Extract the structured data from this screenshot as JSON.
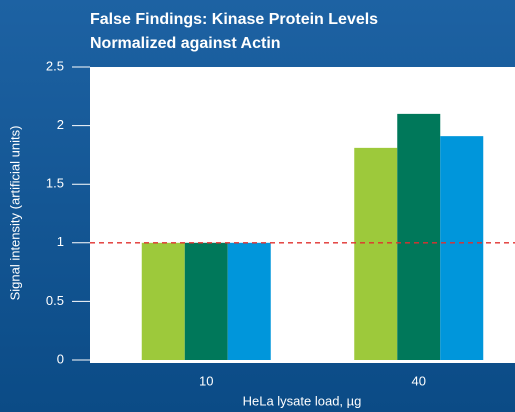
{
  "chart_data": {
    "type": "bar",
    "title": [
      "False Findings: Kinase Protein Levels",
      "Normalized against Actin"
    ],
    "xlabel": "HeLa lysate load, µg",
    "ylabel": "Signal intensity (artificial units)",
    "categories": [
      "10",
      "40"
    ],
    "series": [
      {
        "color": "#9dc93b",
        "values": [
          1,
          1.81
        ]
      },
      {
        "color": "#00785a",
        "values": [
          1,
          2.1
        ]
      },
      {
        "color": "#0096db",
        "values": [
          1,
          1.91
        ]
      }
    ],
    "ylim": [
      0,
      2.5
    ],
    "yticks": [
      0,
      0.5,
      1,
      1.5,
      2,
      2.5
    ],
    "hline": {
      "value": 1,
      "color": "#e0302f"
    }
  }
}
